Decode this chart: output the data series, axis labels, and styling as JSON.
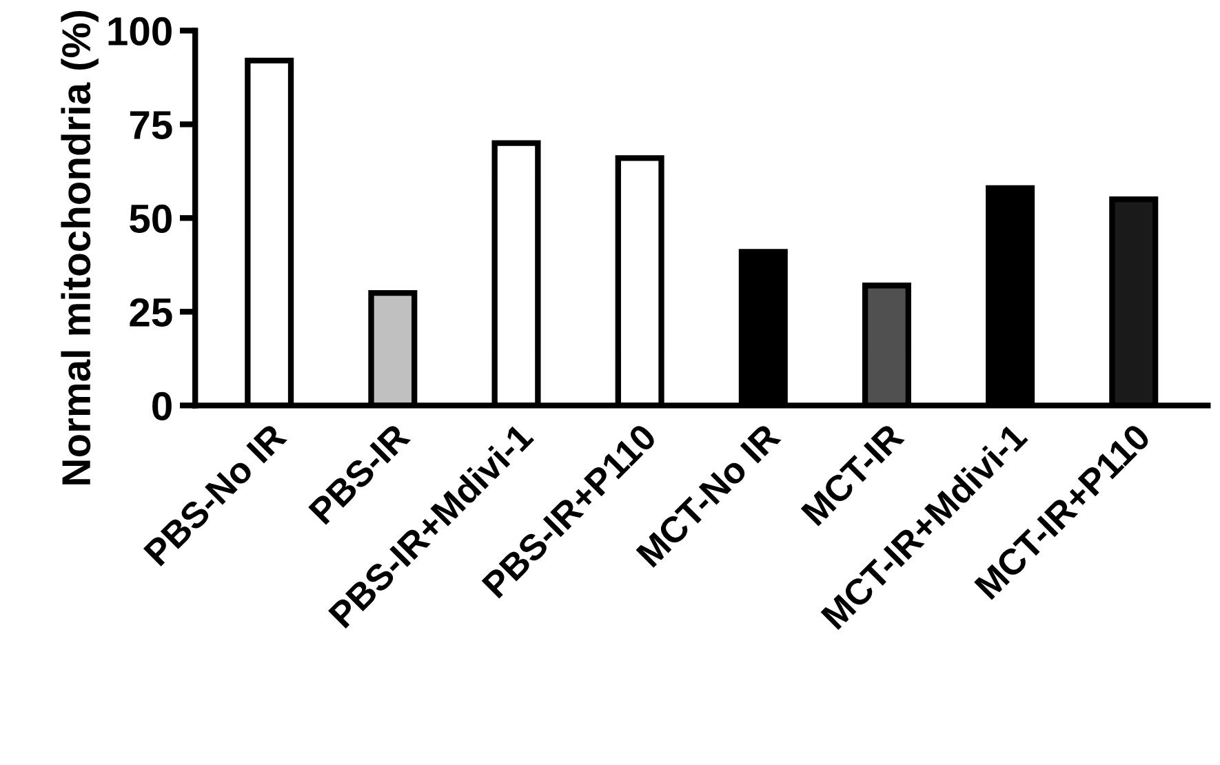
{
  "chart_data": {
    "type": "bar",
    "ylabel": "Normal mitochondria (%)",
    "categories": [
      "PBS-No IR",
      "PBS-IR",
      "PBS-IR+Mdivi-1",
      "PBS-IR+P110",
      "MCT-No IR",
      "MCT-IR",
      "MCT-IR+Mdivi-1",
      "MCT-IR+P110"
    ],
    "values": [
      92,
      30,
      70,
      66,
      41,
      32,
      58,
      55
    ],
    "colors": [
      "#ffffff",
      "#c0c0c0",
      "#ffffff",
      "#ffffff",
      "#000000",
      "#505050",
      "#000000",
      "#1a1a1a"
    ],
    "ylim": [
      0,
      100
    ],
    "yticks": [
      0,
      25,
      50,
      75,
      100
    ],
    "grid": false,
    "legend": false
  }
}
